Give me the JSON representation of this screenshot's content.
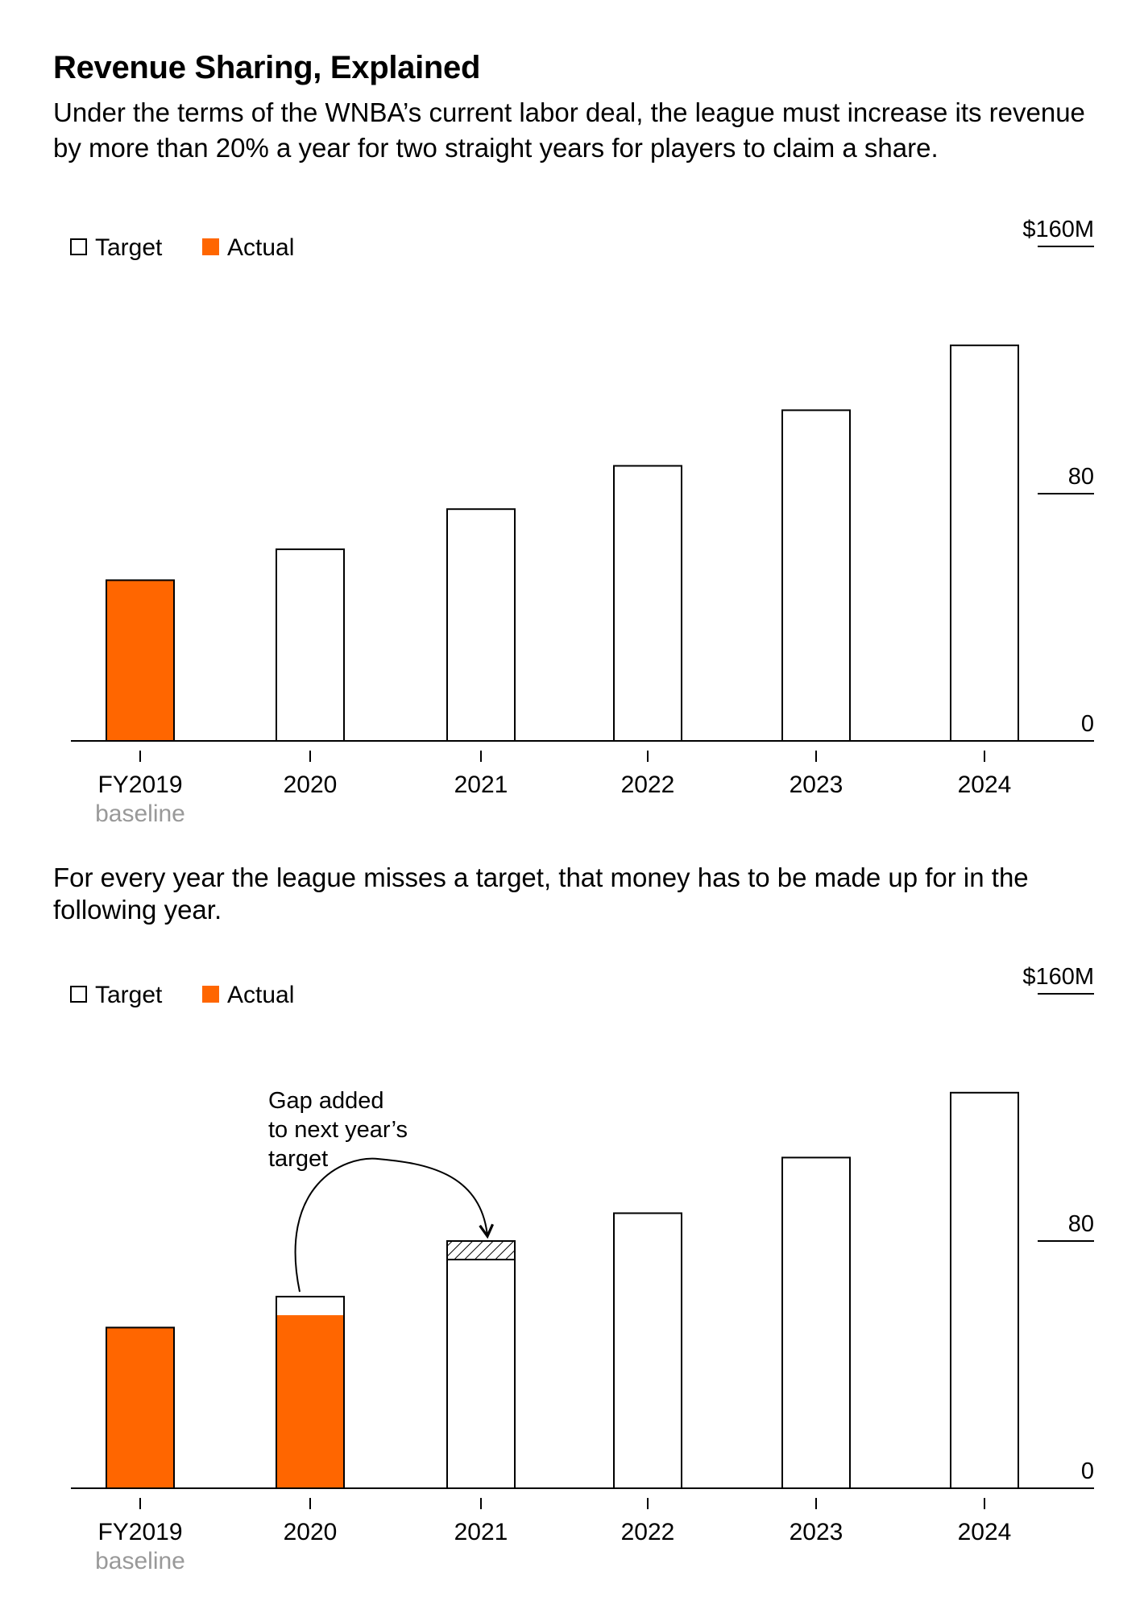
{
  "header": {
    "title": "Revenue Sharing, Explained",
    "subtitle": "Under the terms of the WNBA’s current labor deal, the league must increase its revenue by more than 20% a year for two straight years for players to claim a share."
  },
  "note": "For every year the league misses a target, that money has to be made up for in the following year.",
  "colors": {
    "actual": "#ff6600",
    "target_fill": "#ffffff",
    "outline": "#000000",
    "secondary_text": "#999999"
  },
  "chart_data": [
    {
      "type": "bar",
      "legend": [
        {
          "label": "Target",
          "swatch": "hollow"
        },
        {
          "label": "Actual",
          "swatch": "solid"
        }
      ],
      "legend_position": "top-left",
      "categories": [
        "FY2019",
        "2020",
        "2021",
        "2022",
        "2023",
        "2024"
      ],
      "category_sublabels": [
        "baseline",
        "",
        "",
        "",
        "",
        ""
      ],
      "y_ticks": [
        {
          "value": 160,
          "label": "$160M"
        },
        {
          "value": 80,
          "label": "80"
        },
        {
          "value": 0,
          "label": "0"
        }
      ],
      "ylim": [
        0,
        160
      ],
      "grid": false,
      "series": [
        {
          "name": "Target",
          "values": [
            null,
            62,
            75,
            89,
            107,
            128
          ]
        },
        {
          "name": "Actual",
          "values": [
            52,
            null,
            null,
            null,
            null,
            null
          ]
        }
      ]
    },
    {
      "type": "bar",
      "legend": [
        {
          "label": "Target",
          "swatch": "hollow"
        },
        {
          "label": "Actual",
          "swatch": "solid"
        }
      ],
      "legend_position": "top-left",
      "categories": [
        "FY2019",
        "2020",
        "2021",
        "2022",
        "2023",
        "2024"
      ],
      "category_sublabels": [
        "baseline",
        "",
        "",
        "",
        "",
        ""
      ],
      "y_ticks": [
        {
          "value": 160,
          "label": "$160M"
        },
        {
          "value": 80,
          "label": "80"
        },
        {
          "value": 0,
          "label": "0"
        }
      ],
      "ylim": [
        0,
        160
      ],
      "grid": false,
      "series": [
        {
          "name": "Target",
          "values": [
            null,
            62,
            74,
            89,
            107,
            128
          ]
        },
        {
          "name": "Actual",
          "values": [
            52,
            56,
            null,
            null,
            null,
            null
          ]
        }
      ],
      "carryover": [
        {
          "category": "2021",
          "from": 74,
          "to": 80
        }
      ],
      "annotations": [
        {
          "text": [
            "Gap added",
            "to next year’s",
            "target"
          ],
          "from_category": "2020",
          "to_category": "2021"
        }
      ]
    }
  ]
}
